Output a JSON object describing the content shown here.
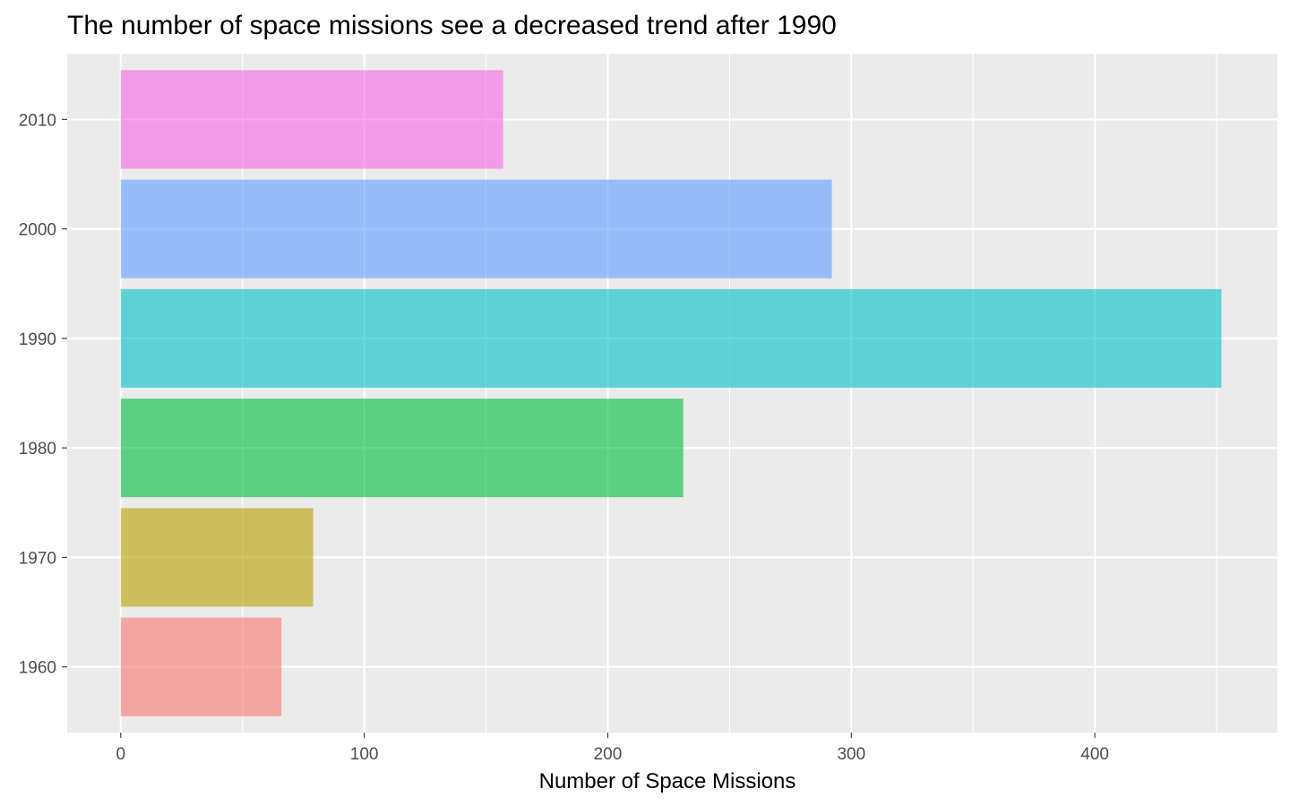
{
  "chart_data": {
    "type": "bar",
    "orientation": "horizontal",
    "title": "The number of space missions see a decreased trend after 1990",
    "xlabel": "Number of Space Missions",
    "ylabel": "",
    "categories": [
      "1960",
      "1970",
      "1980",
      "1990",
      "2000",
      "2010"
    ],
    "values": [
      66,
      79,
      231,
      452,
      292,
      157
    ],
    "colors": [
      "#F8766D",
      "#B79F00",
      "#00BA38",
      "#00BFC4",
      "#619CFF",
      "#F564E3"
    ],
    "bar_opacity": 0.6,
    "xlim": [
      -22,
      475
    ],
    "x_ticks": [
      0,
      100,
      200,
      300,
      400
    ],
    "x_tick_labels": [
      "0",
      "100",
      "200",
      "300",
      "400"
    ],
    "x_minor_ticks": [
      50,
      150,
      250,
      350,
      450
    ],
    "grid": true,
    "panel_background": "#EBEBEB",
    "grid_color": "#FFFFFF",
    "legend": "none"
  }
}
